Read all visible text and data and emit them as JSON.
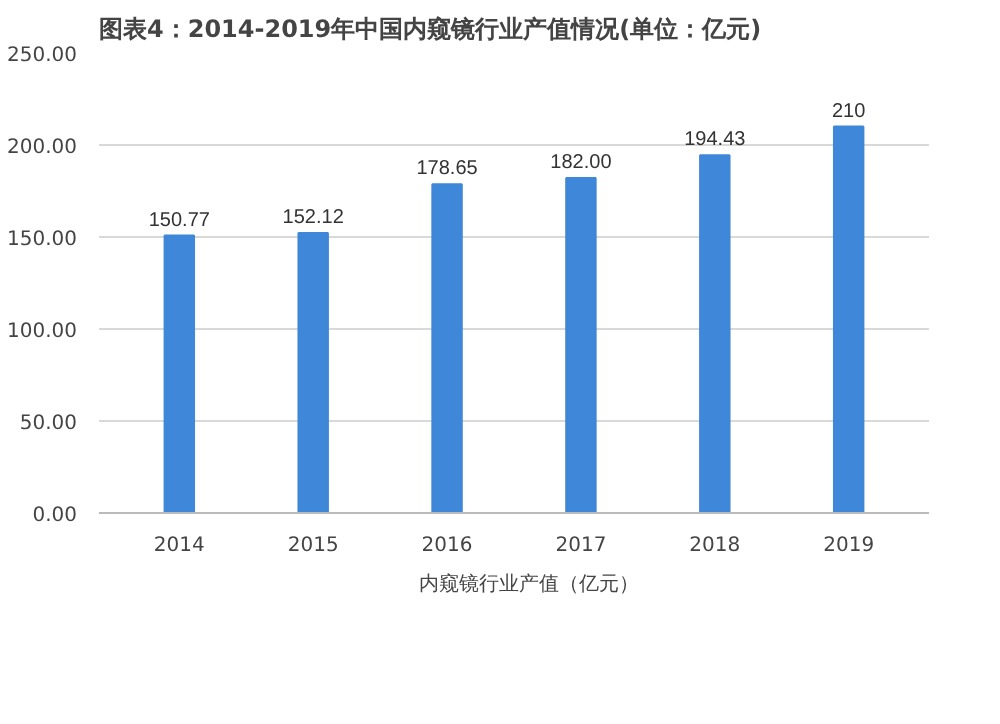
{
  "chart_data": {
    "type": "bar",
    "title": "图表4：2014-2019年中国内窥镜行业产值情况(单位：亿元)",
    "categories": [
      "2014",
      "2015",
      "2016",
      "2017",
      "2018",
      "2019"
    ],
    "series": [
      {
        "name": "内窥镜行业产值（亿元）",
        "color": "#3f87d8",
        "values": [
          150.77,
          152.12,
          178.65,
          182.0,
          194.43,
          210
        ]
      }
    ],
    "value_labels": [
      "150.77",
      "152.12",
      "178.65",
      "182.00",
      "194.43",
      "210"
    ],
    "ylim": [
      0,
      250
    ],
    "yticks": [
      {
        "value": 0,
        "label": "0.00"
      },
      {
        "value": 50,
        "label": "50.00"
      },
      {
        "value": 100,
        "label": "100.00"
      },
      {
        "value": 150,
        "label": "150.00"
      },
      {
        "value": 200,
        "label": "200.00"
      },
      {
        "value": 250,
        "label": "250.00"
      }
    ],
    "grid": "y",
    "legend": "bottom"
  }
}
